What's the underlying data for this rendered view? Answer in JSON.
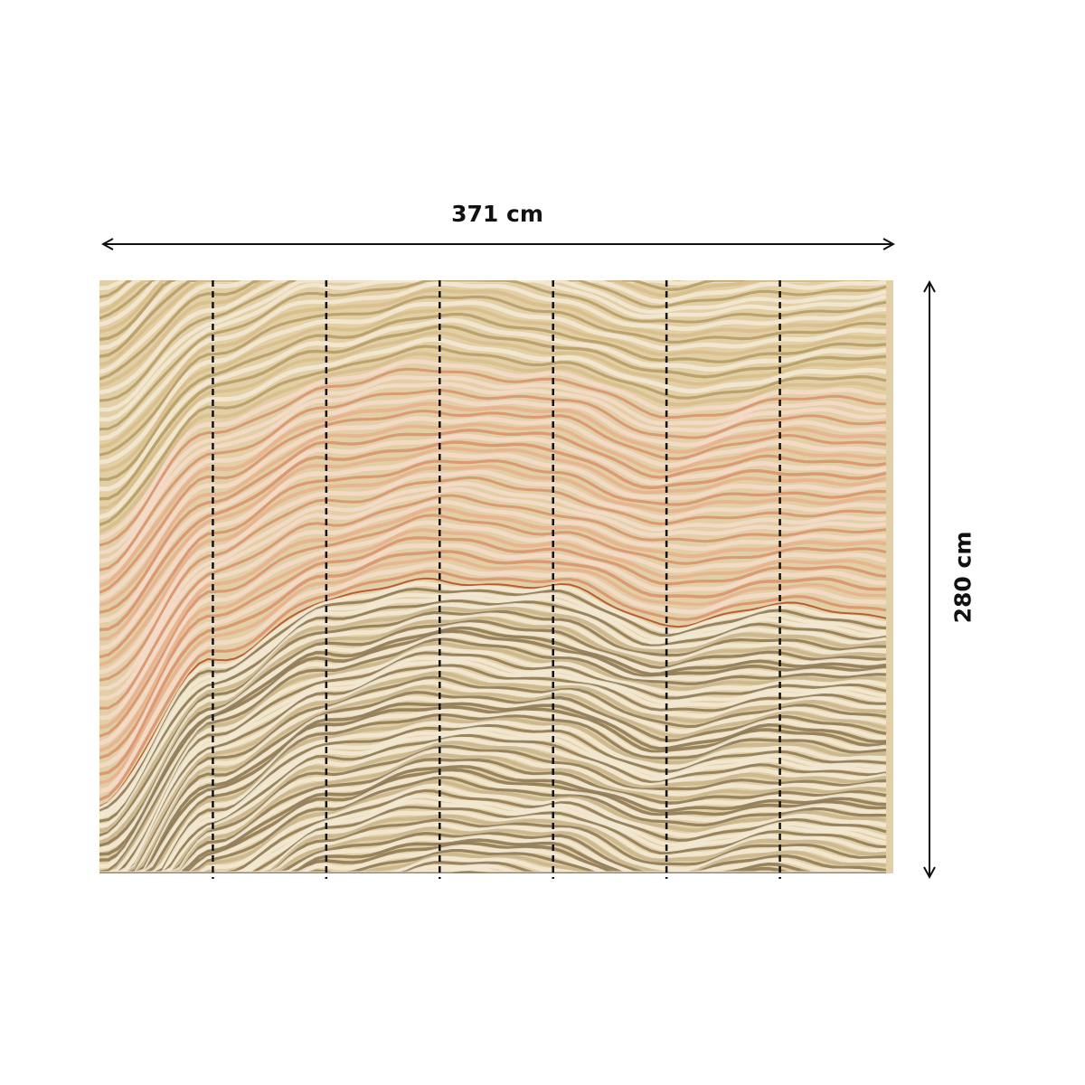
{
  "product": {
    "width_label": "371 cm",
    "height_label": "280 cm",
    "panel_count": 7,
    "pattern": "marble-agate-bands"
  },
  "colors": {
    "beige": "#e6d3ab",
    "peach": "#e8b08c",
    "orange_vein": "#b24a1c",
    "olive_brown": "#8a7650",
    "cream": "#f3ead6",
    "guide_lines": "#111111"
  }
}
